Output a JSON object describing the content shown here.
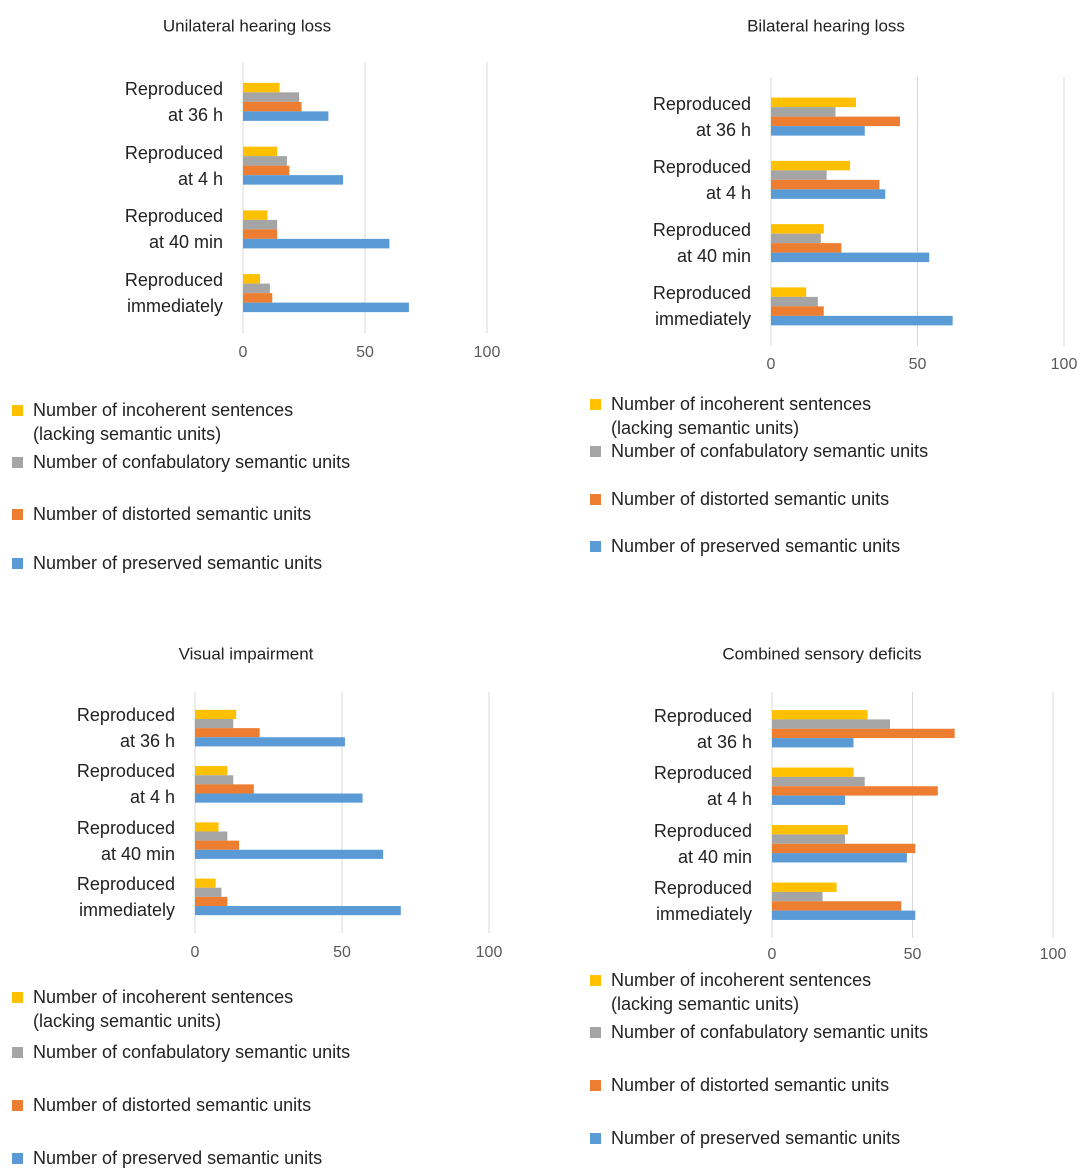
{
  "chart_data": [
    {
      "type": "bar",
      "title": "Unilateral hearing loss",
      "categories": [
        "Reproduced\nat 36 h",
        "Reproduced\nat 4 h",
        "Reproduced\nat 40 min",
        "Reproduced\nimmediately"
      ],
      "series": [
        {
          "name": "Number of incoherent sentences\n(lacking semantic units)",
          "color": "#FFC000",
          "values": [
            15,
            14,
            10,
            7
          ]
        },
        {
          "name": "Number of confabulatory semantic units",
          "color": "#A5A5A5",
          "values": [
            23,
            18,
            14,
            11
          ]
        },
        {
          "name": "Number of distorted semantic units",
          "color": "#ED7D31",
          "values": [
            24,
            19,
            14,
            12
          ]
        },
        {
          "name": "Number of preserved semantic units",
          "color": "#5B9BD5",
          "values": [
            35,
            41,
            60,
            68
          ]
        }
      ],
      "xlim": [
        0,
        100
      ],
      "xticks": [
        0,
        50,
        100
      ],
      "grid": true
    },
    {
      "type": "bar",
      "title": "Bilateral hearing loss",
      "categories": [
        "Reproduced\nat 36 h",
        "Reproduced\nat 4 h",
        "Reproduced\nat 40 min",
        "Reproduced\nimmediately"
      ],
      "series": [
        {
          "name": "Number of incoherent sentences\n(lacking semantic units)",
          "color": "#FFC000",
          "values": [
            29,
            27,
            18,
            12
          ]
        },
        {
          "name": "Number of confabulatory semantic units",
          "color": "#A5A5A5",
          "values": [
            22,
            19,
            17,
            16
          ]
        },
        {
          "name": "Number of distorted semantic units",
          "color": "#ED7D31",
          "values": [
            44,
            37,
            24,
            18
          ]
        },
        {
          "name": "Number of preserved semantic units",
          "color": "#5B9BD5",
          "values": [
            32,
            39,
            54,
            62
          ]
        }
      ],
      "xlim": [
        0,
        100
      ],
      "xticks": [
        0,
        50,
        100
      ],
      "grid": true
    },
    {
      "type": "bar",
      "title": "Visual impairment",
      "categories": [
        "Reproduced\nat 36 h",
        "Reproduced\nat 4 h",
        "Reproduced\nat 40 min",
        "Reproduced\nimmediately"
      ],
      "series": [
        {
          "name": "Number of incoherent sentences\n(lacking semantic units)",
          "color": "#FFC000",
          "values": [
            14,
            11,
            8,
            7
          ]
        },
        {
          "name": "Number of confabulatory semantic units",
          "color": "#A5A5A5",
          "values": [
            13,
            13,
            11,
            9
          ]
        },
        {
          "name": "Number of distorted semantic units",
          "color": "#ED7D31",
          "values": [
            22,
            20,
            15,
            11
          ]
        },
        {
          "name": "Number of preserved semantic units",
          "color": "#5B9BD5",
          "values": [
            51,
            57,
            64,
            70
          ]
        }
      ],
      "xlim": [
        0,
        100
      ],
      "xticks": [
        0,
        50,
        100
      ],
      "grid": true
    },
    {
      "type": "bar",
      "title": "Combined sensory deficits",
      "categories": [
        "Reproduced\nat 36 h",
        "Reproduced\nat 4 h",
        "Reproduced\nat 40 min",
        "Reproduced\nimmediately"
      ],
      "series": [
        {
          "name": "Number of incoherent sentences\n(lacking semantic units)",
          "color": "#FFC000",
          "values": [
            34,
            29,
            27,
            23
          ]
        },
        {
          "name": "Number of confabulatory semantic units",
          "color": "#A5A5A5",
          "values": [
            42,
            33,
            26,
            18
          ]
        },
        {
          "name": "Number of distorted semantic units",
          "color": "#ED7D31",
          "values": [
            65,
            59,
            51,
            46
          ]
        },
        {
          "name": "Number of preserved semantic units",
          "color": "#5B9BD5",
          "values": [
            29,
            26,
            48,
            51
          ]
        }
      ],
      "xlim": [
        0,
        100
      ],
      "xticks": [
        0,
        50,
        100
      ],
      "grid": true
    }
  ]
}
